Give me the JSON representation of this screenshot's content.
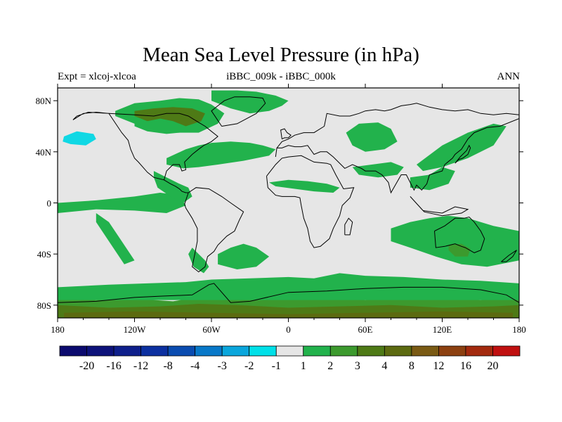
{
  "title": "Mean Sea Level Pressure (in hPa)",
  "subtitle_left": "Expt = xlcoj-xlcoa",
  "subtitle_center": "iBBC_009k - iBBC_000k",
  "subtitle_right": "ANN",
  "map": {
    "projection": "cylindrical-equidistant",
    "lon_range": [
      -180,
      180
    ],
    "lat_range": [
      -90,
      90
    ],
    "lon_ticks": [
      {
        "value": -180,
        "label": "180"
      },
      {
        "value": -120,
        "label": "120W"
      },
      {
        "value": -60,
        "label": "60W"
      },
      {
        "value": 0,
        "label": "0"
      },
      {
        "value": 60,
        "label": "60E"
      },
      {
        "value": 120,
        "label": "120E"
      },
      {
        "value": 180,
        "label": "180"
      }
    ],
    "lat_ticks": [
      {
        "value": 80,
        "label": "80N"
      },
      {
        "value": 40,
        "label": "40N"
      },
      {
        "value": 0,
        "label": "0"
      },
      {
        "value": -40,
        "label": "40S"
      },
      {
        "value": -80,
        "label": "80S"
      }
    ],
    "background_color": "#e6e6e6",
    "regions": [
      {
        "name": "antarctic-ring",
        "level": "2",
        "lons": [
          -180,
          -150,
          -120,
          -90,
          -60,
          -30,
          0,
          30,
          60,
          90,
          120,
          150,
          180,
          180,
          -180
        ],
        "lats": [
          -74,
          -76,
          -75,
          -77,
          -72,
          -73,
          -75,
          -74,
          -76,
          -74,
          -75,
          -76,
          -74,
          -90,
          -90
        ]
      },
      {
        "name": "southern-ocean-band",
        "level": "1",
        "lons": [
          -180,
          -140,
          -110,
          -80,
          -60,
          -30,
          0,
          20,
          40,
          60,
          90,
          120,
          150,
          180,
          180,
          -180
        ],
        "lats": [
          -66,
          -64,
          -63,
          -62,
          -60,
          -59,
          -58,
          -59,
          -55,
          -57,
          -58,
          -60,
          -61,
          -63,
          -76,
          -76
        ]
      },
      {
        "name": "antarctic-core",
        "level": "3",
        "lons": [
          -180,
          -140,
          -100,
          -70,
          -40,
          0,
          40,
          80,
          120,
          160,
          180,
          180,
          -180
        ],
        "lats": [
          -80,
          -82,
          -81,
          -79,
          -80,
          -82,
          -81,
          -80,
          -82,
          -81,
          -80,
          -90,
          -90
        ]
      },
      {
        "name": "antarctic-deep",
        "level": "4",
        "lons": [
          -175,
          -120,
          -60,
          0,
          60,
          120,
          175,
          175,
          -175
        ],
        "lats": [
          -86,
          -85,
          -86,
          -87,
          -86,
          -85,
          -86,
          -90,
          -90
        ]
      },
      {
        "name": "north-atlantic",
        "level": "1",
        "lons": [
          -95,
          -80,
          -70,
          -60,
          -45,
          -30,
          -20,
          -10,
          -15,
          -35,
          -55,
          -70,
          -82,
          -95
        ],
        "lats": [
          35,
          42,
          45,
          47,
          48,
          47,
          45,
          42,
          37,
          33,
          30,
          28,
          27,
          30
        ]
      },
      {
        "name": "arctic-canada",
        "level": "1",
        "lons": [
          -135,
          -120,
          -100,
          -85,
          -70,
          -60,
          -50,
          -55,
          -70,
          -90,
          -110,
          -125,
          -135
        ],
        "lats": [
          72,
          78,
          80,
          82,
          81,
          77,
          70,
          62,
          55,
          55,
          58,
          64,
          68
        ]
      },
      {
        "name": "arctic-canada-dark",
        "level": "3",
        "lons": [
          -120,
          -105,
          -90,
          -75,
          -65,
          -68,
          -80,
          -95,
          -110,
          -120
        ],
        "lats": [
          72,
          74,
          75,
          74,
          70,
          64,
          60,
          62,
          64,
          68
        ]
      },
      {
        "name": "greenland-arctic",
        "level": "1",
        "lons": [
          -60,
          -40,
          -25,
          -10,
          0,
          -5,
          -15,
          -30,
          -45,
          -60
        ],
        "lats": [
          88,
          88,
          87,
          84,
          80,
          76,
          72,
          70,
          74,
          80
        ]
      },
      {
        "name": "north-pacific-east",
        "level": "1",
        "lons": [
          -120,
          -100,
          -90,
          -80,
          -85,
          -95,
          -110,
          -120
        ],
        "lats": [
          62,
          66,
          64,
          60,
          55,
          54,
          56,
          60
        ]
      },
      {
        "name": "pacific-equatorial",
        "level": "1",
        "lons": [
          -180,
          -150,
          -120,
          -100,
          -85,
          -80,
          -95,
          -120,
          -150,
          -180
        ],
        "lats": [
          0,
          2,
          5,
          8,
          6,
          -2,
          -8,
          -6,
          -5,
          -8
        ]
      },
      {
        "name": "pacific-south-tongue",
        "level": "1",
        "lons": [
          -150,
          -140,
          -130,
          -120,
          -128,
          -140,
          -150
        ],
        "lats": [
          -8,
          -15,
          -30,
          -45,
          -48,
          -30,
          -15
        ]
      },
      {
        "name": "central-america",
        "level": "1",
        "lons": [
          -105,
          -95,
          -85,
          -78,
          -75,
          -82,
          -92,
          -102,
          -105
        ],
        "lats": [
          25,
          20,
          15,
          12,
          5,
          0,
          5,
          12,
          20
        ]
      },
      {
        "name": "south-america-south",
        "level": "1",
        "lons": [
          -75,
          -70,
          -65,
          -62,
          -66,
          -74,
          -78,
          -75
        ],
        "lats": [
          -35,
          -40,
          -45,
          -50,
          -55,
          -50,
          -40,
          -35
        ]
      },
      {
        "name": "south-atlantic",
        "level": "1",
        "lons": [
          -55,
          -45,
          -35,
          -25,
          -15,
          -25,
          -40,
          -55
        ],
        "lats": [
          -40,
          -35,
          -32,
          -35,
          -42,
          -50,
          -52,
          -48
        ]
      },
      {
        "name": "sahara-band",
        "level": "1",
        "lons": [
          -15,
          0,
          15,
          30,
          40,
          35,
          20,
          5,
          -10,
          -15
        ],
        "lats": [
          16,
          18,
          17,
          15,
          12,
          8,
          9,
          11,
          13,
          16
        ]
      },
      {
        "name": "europe-asia",
        "level": "1",
        "lons": [
          45,
          55,
          70,
          80,
          85,
          75,
          60,
          50,
          45
        ],
        "lats": [
          55,
          62,
          63,
          58,
          48,
          42,
          40,
          45,
          55
        ]
      },
      {
        "name": "arabia-india",
        "level": "1",
        "lons": [
          50,
          65,
          80,
          90,
          85,
          70,
          55,
          50
        ],
        "lats": [
          28,
          30,
          32,
          28,
          22,
          20,
          22,
          28
        ]
      },
      {
        "name": "east-asia-north",
        "level": "1",
        "lons": [
          100,
          120,
          140,
          160,
          170,
          160,
          140,
          120,
          105,
          100
        ],
        "lats": [
          30,
          45,
          55,
          62,
          60,
          45,
          35,
          28,
          25,
          30
        ]
      },
      {
        "name": "east-asia-south",
        "level": "1",
        "lons": [
          95,
          110,
          120,
          130,
          125,
          110,
          95
        ],
        "lats": [
          20,
          22,
          28,
          25,
          15,
          10,
          12
        ]
      },
      {
        "name": "indian-ocean-east",
        "level": "1",
        "lons": [
          80,
          95,
          110,
          125,
          140,
          160,
          180,
          180,
          155,
          135,
          115,
          95,
          80
        ],
        "lats": [
          -20,
          -15,
          -12,
          -10,
          -12,
          -18,
          -22,
          -45,
          -50,
          -48,
          -42,
          -35,
          -30
        ]
      },
      {
        "name": "australia-south",
        "level": "2",
        "lons": [
          125,
          135,
          142,
          140,
          130,
          125
        ],
        "lats": [
          -33,
          -32,
          -36,
          -42,
          -42,
          -37
        ]
      },
      {
        "name": "sw-pacific-shelf",
        "level": "1",
        "lons": [
          150,
          165,
          178,
          175,
          160,
          150
        ],
        "lats": [
          -30,
          -28,
          -35,
          -45,
          -48,
          -40
        ]
      },
      {
        "name": "north-pacific-cyan",
        "level": "-2",
        "lons": [
          -175,
          -165,
          -152,
          -150,
          -158,
          -170,
          -176,
          -175
        ],
        "lats": [
          52,
          56,
          54,
          50,
          45,
          46,
          48,
          52
        ]
      }
    ],
    "coastlines": [
      {
        "name": "north-america",
        "lons": [
          -168,
          -160,
          -150,
          -140,
          -130,
          -125,
          -123,
          -120,
          -117,
          -110,
          -105,
          -97,
          -95,
          -90,
          -85,
          -83,
          -80,
          -81,
          -75,
          -70,
          -66,
          -60,
          -55,
          -60,
          -65,
          -70,
          -78,
          -85,
          -95,
          -105,
          -120,
          -140,
          -156,
          -165,
          -168
        ],
        "lats": [
          65,
          70,
          71,
          70,
          55,
          49,
          42,
          35,
          32,
          24,
          20,
          18,
          25,
          30,
          30,
          25,
          26,
          32,
          38,
          42,
          45,
          48,
          52,
          56,
          60,
          63,
          68,
          70,
          70,
          68,
          69,
          70,
          71,
          68,
          65
        ]
      },
      {
        "name": "central-america",
        "lons": [
          -97,
          -92,
          -88,
          -85,
          -83,
          -80,
          -78
        ],
        "lats": [
          18,
          15,
          13,
          11,
          9,
          8,
          8
        ]
      },
      {
        "name": "south-america",
        "lons": [
          -78,
          -72,
          -62,
          -52,
          -45,
          -35,
          -38,
          -42,
          -48,
          -55,
          -58,
          -63,
          -65,
          -70,
          -75,
          -73,
          -71,
          -71,
          -75,
          -80,
          -81,
          -78
        ],
        "lats": [
          8,
          12,
          11,
          5,
          0,
          -7,
          -13,
          -22,
          -26,
          -33,
          -38,
          -42,
          -50,
          -54,
          -50,
          -40,
          -30,
          -20,
          -12,
          -4,
          -1,
          8
        ]
      },
      {
        "name": "greenland",
        "lons": [
          -52,
          -40,
          -25,
          -18,
          -20,
          -30,
          -42,
          -50,
          -55,
          -60,
          -52
        ],
        "lats": [
          60,
          62,
          70,
          78,
          82,
          83,
          83,
          80,
          76,
          72,
          60
        ]
      },
      {
        "name": "eurasia",
        "lons": [
          -10,
          -9,
          -5,
          0,
          5,
          12,
          20,
          28,
          30,
          40,
          48,
          55,
          60,
          68,
          75,
          80,
          88,
          95,
          100,
          110,
          120,
          130,
          140,
          150,
          160,
          170,
          180,
          180,
          165,
          155,
          145,
          140,
          135,
          130,
          128,
          122,
          120,
          110,
          108,
          104,
          100,
          98,
          95,
          92,
          88,
          80,
          78,
          73,
          68,
          60,
          57,
          50,
          44,
          35,
          30,
          25,
          20,
          15,
          10,
          5,
          0,
          -5,
          -9,
          -10
        ],
        "lats": [
          36,
          43,
          48,
          50,
          53,
          55,
          55,
          60,
          70,
          68,
          68,
          70,
          72,
          73,
          72,
          73,
          76,
          77,
          78,
          75,
          73,
          72,
          73,
          70,
          69,
          70,
          69,
          66,
          60,
          59,
          55,
          50,
          42,
          38,
          35,
          30,
          25,
          22,
          15,
          10,
          14,
          10,
          16,
          22,
          22,
          8,
          16,
          22,
          25,
          25,
          27,
          30,
          27,
          36,
          40,
          40,
          38,
          45,
          44,
          44,
          45,
          43,
          43,
          36
        ]
      },
      {
        "name": "africa",
        "lons": [
          -17,
          -10,
          -5,
          0,
          10,
          20,
          30,
          33,
          37,
          43,
          51,
          48,
          42,
          40,
          35,
          32,
          25,
          20,
          17,
          15,
          12,
          10,
          9,
          5,
          0,
          -5,
          -10,
          -16,
          -17
        ],
        "lats": [
          21,
          30,
          35,
          36,
          37,
          32,
          31,
          30,
          22,
          11,
          12,
          4,
          -2,
          -10,
          -20,
          -28,
          -34,
          -35,
          -30,
          -20,
          -12,
          -2,
          4,
          5,
          5,
          5,
          6,
          12,
          21
        ]
      },
      {
        "name": "australia",
        "lons": [
          114,
          122,
          130,
          137,
          141,
          145,
          150,
          153,
          150,
          145,
          138,
          135,
          130,
          122,
          115,
          114
        ],
        "lats": [
          -22,
          -18,
          -12,
          -12,
          -11,
          -15,
          -22,
          -28,
          -37,
          -39,
          -35,
          -34,
          -32,
          -34,
          -35,
          -22
        ]
      },
      {
        "name": "antarctica",
        "lons": [
          -180,
          -150,
          -120,
          -100,
          -75,
          -62,
          -58,
          -45,
          -30,
          0,
          30,
          60,
          90,
          120,
          150,
          170,
          180
        ],
        "lats": [
          -78,
          -77,
          -74,
          -73,
          -72,
          -64,
          -63,
          -78,
          -77,
          -70,
          -69,
          -67,
          -66,
          -66,
          -68,
          -72,
          -78
        ]
      },
      {
        "name": "japan",
        "lons": [
          130,
          133,
          136,
          140,
          142,
          141,
          139,
          134,
          130
        ],
        "lats": [
          31,
          34,
          35,
          38,
          43,
          45,
          41,
          36,
          31
        ]
      },
      {
        "name": "uk",
        "lons": [
          -5,
          -3,
          0,
          2,
          -1,
          -3,
          -6,
          -5
        ],
        "lats": [
          50,
          51,
          51,
          53,
          55,
          58,
          57,
          50
        ]
      },
      {
        "name": "madagascar",
        "lons": [
          44,
          48,
          50,
          47,
          44,
          44
        ],
        "lats": [
          -25,
          -25,
          -15,
          -12,
          -17,
          -25
        ]
      },
      {
        "name": "new-zealand",
        "lons": [
          166,
          172,
          178,
          175,
          170,
          166
        ],
        "lats": [
          -46,
          -41,
          -37,
          -42,
          -46,
          -46
        ]
      },
      {
        "name": "indonesia",
        "lons": [
          95,
          105,
          112,
          120,
          130,
          140,
          135,
          120,
          106,
          95
        ],
        "lats": [
          5,
          -6,
          -7,
          -8,
          -3,
          -5,
          -8,
          -10,
          -7,
          5
        ]
      }
    ]
  },
  "colorbar": {
    "colors": [
      "#0b0a6e",
      "#0d127a",
      "#0e1f8b",
      "#0c30a0",
      "#0a4cb0",
      "#0878c8",
      "#0aa6dc",
      "#00e0e8",
      "#e6e6e6",
      "#22b24c",
      "#3c9a2e",
      "#4e7a16",
      "#5c6a10",
      "#7a5a14",
      "#8c4010",
      "#a32a0e",
      "#c01010"
    ],
    "labels": [
      "-20",
      "-16",
      "-12",
      "-8",
      "-4",
      "-3",
      "-2",
      "-1",
      "1",
      "2",
      "3",
      "4",
      "8",
      "12",
      "16",
      "20"
    ]
  },
  "level_colors": {
    "-2": "#10d8e4",
    "1": "#22b24c",
    "2": "#3c9a2e",
    "3": "#4e7a16",
    "4": "#5c6a10"
  }
}
